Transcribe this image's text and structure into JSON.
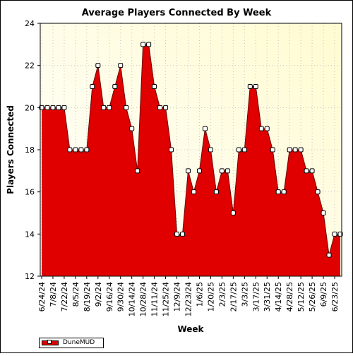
{
  "chart_data": {
    "type": "area",
    "title": "Average Players Connected By Week",
    "xlabel": "Week",
    "ylabel": "Players Connected",
    "ylim": [
      12,
      24
    ],
    "yticks": [
      12,
      14,
      16,
      18,
      20,
      22,
      24
    ],
    "grid": true,
    "legend_position": "bottom-left",
    "x_tick_labels": [
      "6/24/24",
      "7/8/24",
      "7/22/24",
      "8/5/24",
      "8/19/24",
      "9/2/24",
      "9/16/24",
      "9/30/24",
      "10/14/24",
      "10/28/24",
      "11/11/24",
      "11/25/24",
      "12/9/24",
      "12/23/24",
      "1/6/25",
      "1/20/25",
      "2/3/25",
      "2/17/25",
      "3/3/25",
      "3/17/25",
      "3/31/25",
      "4/14/25",
      "4/28/25",
      "5/12/25",
      "5/26/25",
      "6/9/25",
      "6/23/25"
    ],
    "series": [
      {
        "name": "DuneMUD",
        "color": "#e00000",
        "values": [
          20,
          20,
          20,
          20,
          20,
          18,
          18,
          18,
          18,
          21,
          22,
          20,
          20,
          21,
          22,
          20,
          19,
          17,
          23,
          23,
          21,
          20,
          20,
          18,
          14,
          14,
          17,
          16,
          17,
          19,
          18,
          16,
          17,
          17,
          15,
          18,
          18,
          21,
          21,
          19,
          19,
          18,
          16,
          16,
          18,
          18,
          18,
          17,
          17,
          16,
          15,
          13,
          14,
          14
        ]
      }
    ]
  }
}
